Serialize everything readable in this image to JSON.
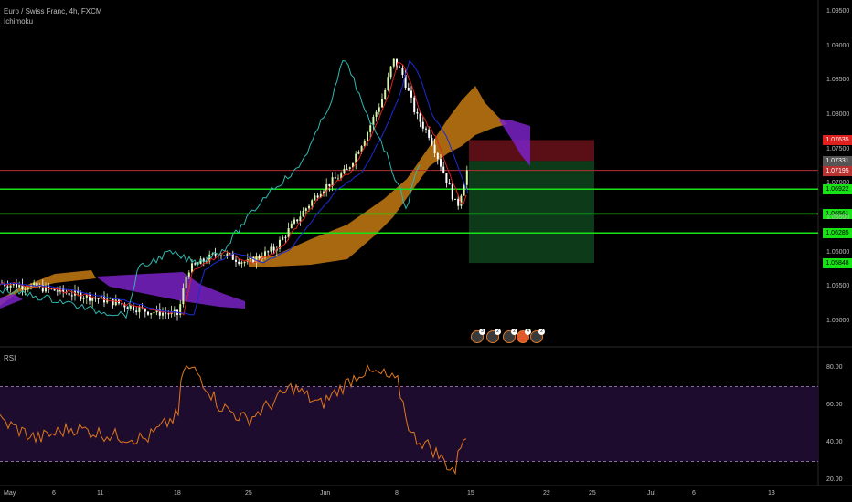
{
  "header": {
    "symbol_title": "Euro / Swiss Franc, 4h, FXCM",
    "indicator_1": "Ichimoku"
  },
  "rsi_panel": {
    "title": "RSI"
  },
  "colors": {
    "background": "#000000",
    "candle_up": "#d6f5a8",
    "candle_down": "#ffffff",
    "tenkan": "#e0201e",
    "kijun": "#1b2bd6",
    "chikou": "#2fb8b0",
    "cloud_bull": "#c67a12",
    "cloud_bear": "#7a22c7",
    "hline": "#17e317",
    "current_price_line": "#b33030",
    "stop_zone": "#5a0e16",
    "target_zone": "#0d3a18",
    "rsi_line": "#e0781a",
    "rsi_band": "#1e0c2e"
  },
  "price_axis": {
    "ticks": [
      "1.09500",
      "1.09000",
      "1.08500",
      "1.08000",
      "1.07500",
      "1.07000",
      "1.06500",
      "1.06000",
      "1.05500",
      "1.05000"
    ],
    "tags": [
      {
        "label": "1.07635",
        "bg": "#e0201e",
        "fg": "#ffffff",
        "price": 1.07635
      },
      {
        "label": "1.07331",
        "bg": "#555555",
        "fg": "#ffffff",
        "price": 1.07331
      },
      {
        "label": "1.07195",
        "bg": "#b83030",
        "fg": "#ffffff",
        "price": 1.07195
      },
      {
        "label": "1.06922",
        "bg": "#17e317",
        "fg": "#000000",
        "price": 1.06922
      },
      {
        "label": "1.06561",
        "bg": "#17e317",
        "fg": "#000000",
        "price": 1.06561
      },
      {
        "label": "1.06285",
        "bg": "#17e317",
        "fg": "#000000",
        "price": 1.06285
      },
      {
        "label": "1.05848",
        "bg": "#17e317",
        "fg": "#000000",
        "price": 1.05848
      }
    ]
  },
  "rsi_axis": {
    "ticks": [
      "80.00",
      "60.00",
      "40.00",
      "20.00"
    ]
  },
  "time_axis": {
    "labels": [
      "May",
      "6",
      "11",
      "18",
      "25",
      "Jun",
      "8",
      "15",
      "22",
      "25",
      "Jul",
      "6",
      "13"
    ]
  },
  "events": [
    {
      "badge": "3"
    },
    {
      "badge": "2"
    },
    {
      "badge": "2"
    },
    {
      "badge": "4"
    },
    {
      "badge": "2"
    }
  ]
}
